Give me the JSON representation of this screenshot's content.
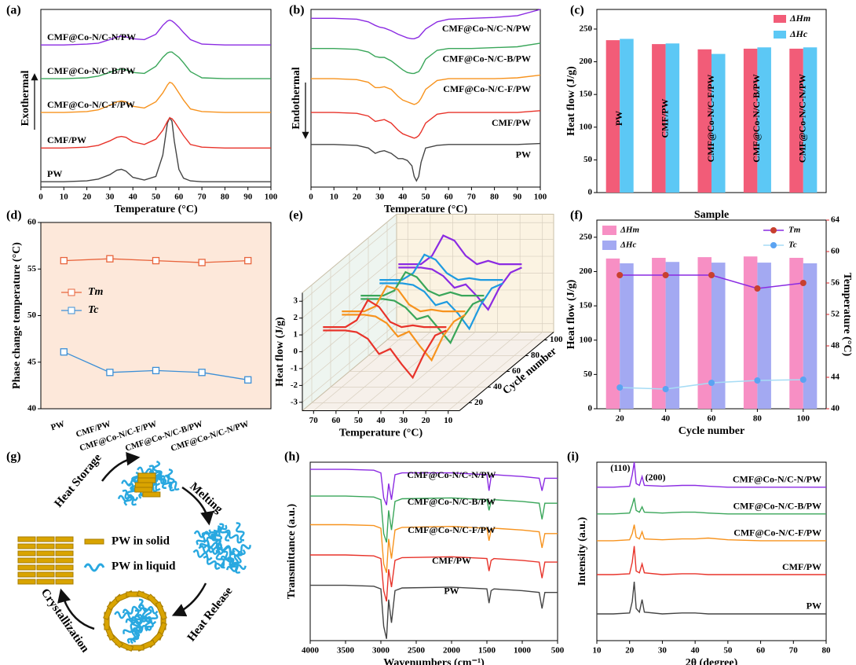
{
  "chart_data": [
    {
      "label": "(a)",
      "type": "line",
      "xlabel": "Temperature (°C)",
      "ylabel": "Exothermal",
      "xlim": [
        0,
        100
      ],
      "xticks": [
        0,
        10,
        20,
        30,
        40,
        50,
        60,
        70,
        80,
        90,
        100
      ],
      "ylim": [
        0,
        10
      ],
      "x": [
        0,
        10,
        20,
        25,
        30,
        33,
        35,
        37,
        40,
        45,
        50,
        53,
        55,
        56,
        57,
        58,
        60,
        62,
        65,
        70,
        80,
        90,
        100
      ],
      "series": [
        {
          "name": "PW",
          "color": "#444444",
          "values": [
            0.3,
            0.3,
            0.35,
            0.45,
            0.7,
            0.95,
            1.0,
            0.9,
            0.55,
            0.4,
            0.6,
            1.8,
            3.6,
            3.9,
            3.7,
            2.6,
            1.0,
            0.5,
            0.35,
            0.3,
            0.3,
            0.3,
            0.3
          ]
        },
        {
          "name": "CMF/PW",
          "color": "#e8332a",
          "values": [
            2.2,
            2.2,
            2.25,
            2.35,
            2.6,
            2.8,
            2.85,
            2.8,
            2.55,
            2.4,
            2.7,
            3.2,
            3.7,
            3.9,
            3.85,
            3.7,
            3.3,
            2.9,
            2.4,
            2.25,
            2.2,
            2.2,
            2.2
          ]
        },
        {
          "name": "CMF@Co-N/C-F/PW",
          "color": "#f7931e",
          "values": [
            4.2,
            4.2,
            4.25,
            4.35,
            4.6,
            4.8,
            4.85,
            4.8,
            4.55,
            4.45,
            4.8,
            5.3,
            5.75,
            5.9,
            5.85,
            5.7,
            5.3,
            4.9,
            4.4,
            4.25,
            4.2,
            4.2,
            4.2
          ]
        },
        {
          "name": "CMF@Co-N/C-B/PW",
          "color": "#3aa65a",
          "values": [
            6.1,
            6.1,
            6.15,
            6.25,
            6.45,
            6.6,
            6.65,
            6.6,
            6.45,
            6.4,
            6.8,
            7.3,
            7.55,
            7.6,
            7.6,
            7.5,
            7.3,
            7.0,
            6.5,
            6.15,
            6.1,
            6.1,
            6.1
          ]
        },
        {
          "name": "CMF@Co-N/C-N/PW",
          "color": "#8b2be2",
          "values": [
            8.0,
            8.0,
            8.05,
            8.1,
            8.3,
            8.45,
            8.5,
            8.45,
            8.35,
            8.3,
            8.6,
            9.1,
            9.35,
            9.4,
            9.35,
            9.25,
            9.0,
            8.7,
            8.3,
            8.05,
            8.0,
            8.0,
            8.0
          ]
        }
      ]
    },
    {
      "label": "(b)",
      "type": "line",
      "xlabel": "Temperature (°C)",
      "ylabel": "Endothermal",
      "xlim": [
        0,
        100
      ],
      "xticks": [
        0,
        10,
        20,
        30,
        40,
        50,
        60,
        70,
        80,
        90,
        100
      ],
      "ylim": [
        0,
        10
      ],
      "x": [
        0,
        10,
        20,
        25,
        28,
        30,
        32,
        35,
        38,
        40,
        42,
        44,
        45,
        46,
        47,
        48,
        50,
        55,
        60,
        70,
        80,
        90,
        100
      ],
      "series": [
        {
          "name": "PW",
          "color": "#444444",
          "values": [
            2.4,
            2.4,
            2.35,
            2.2,
            1.9,
            2.0,
            2.05,
            1.9,
            1.6,
            1.6,
            1.5,
            1.2,
            0.6,
            0.35,
            0.6,
            1.4,
            2.2,
            2.35,
            2.4,
            2.4,
            2.4,
            2.4,
            2.45
          ]
        },
        {
          "name": "CMF/PW",
          "color": "#e8332a",
          "values": [
            4.2,
            4.2,
            4.15,
            4.0,
            3.7,
            3.75,
            3.8,
            3.6,
            3.2,
            3.0,
            2.9,
            2.8,
            2.75,
            2.8,
            2.9,
            3.1,
            3.6,
            4.1,
            4.2,
            4.2,
            4.2,
            4.2,
            4.3
          ]
        },
        {
          "name": "CMF@Co-N/C-F/PW",
          "color": "#f7931e",
          "values": [
            6.1,
            6.1,
            6.05,
            5.9,
            5.6,
            5.6,
            5.65,
            5.5,
            5.1,
            4.9,
            4.8,
            4.7,
            4.65,
            4.7,
            4.8,
            5.0,
            5.5,
            6.0,
            6.1,
            6.1,
            6.1,
            6.15,
            6.3
          ]
        },
        {
          "name": "CMF@Co-N/C-B/PW",
          "color": "#3aa65a",
          "values": [
            7.8,
            7.8,
            7.75,
            7.6,
            7.35,
            7.3,
            7.3,
            7.1,
            6.8,
            6.6,
            6.45,
            6.4,
            6.4,
            6.45,
            6.5,
            6.7,
            7.2,
            7.7,
            7.8,
            7.8,
            7.85,
            7.9,
            8.1
          ]
        },
        {
          "name": "CMF@Co-N/C-N/PW",
          "color": "#8b2be2",
          "values": [
            9.5,
            9.5,
            9.45,
            9.3,
            9.1,
            9.0,
            8.95,
            8.8,
            8.6,
            8.5,
            8.4,
            8.35,
            8.35,
            8.4,
            8.45,
            8.6,
            8.9,
            9.3,
            9.45,
            9.5,
            9.55,
            9.65,
            10.0
          ]
        }
      ]
    },
    {
      "label": "(c)",
      "type": "bar",
      "xlabel": "Sample",
      "ylabel": "Heat flow (J/g)",
      "categories": [
        "PW",
        "CMF/PW",
        "CMF@Co-N/C-F/PW",
        "CMF@Co-N/C-B/PW",
        "CMF@Co-N/C-N/PW"
      ],
      "ylim": [
        0,
        280
      ],
      "yticks": [
        0,
        50,
        100,
        150,
        200,
        250
      ],
      "series": [
        {
          "name": "ΔHm",
          "color": "#f25c78",
          "values": [
            233,
            227,
            219,
            220,
            220
          ]
        },
        {
          "name": "ΔHc",
          "color": "#5cc8f5",
          "values": [
            235,
            228,
            212,
            222,
            222
          ]
        }
      ]
    },
    {
      "label": "(d)",
      "type": "line",
      "ylabel": "Phase change temperature (°C)",
      "categories": [
        "PW",
        "CMF/PW",
        "CMF@Co-N/C-F/PW",
        "CMF@Co-N/C-B/PW",
        "CMF@Co-N/C-N/PW"
      ],
      "ylim": [
        40,
        60
      ],
      "yticks": [
        40,
        45,
        50,
        55,
        60
      ],
      "background": "#fde8da",
      "series": [
        {
          "name": "Tm",
          "color": "#e8643c",
          "values": [
            55.9,
            56.1,
            55.9,
            55.7,
            55.9
          ]
        },
        {
          "name": "Tc",
          "color": "#3c8fd6",
          "values": [
            46.1,
            43.9,
            44.1,
            43.9,
            43.1
          ]
        }
      ]
    },
    {
      "label": "(e)",
      "type": "waterfall3d",
      "xlabel": "Temperature (°C)",
      "ylabel": "Heat flow (J/g)",
      "zlabel": "Cycle number",
      "x": [
        15,
        20,
        25,
        30,
        35,
        40,
        45,
        50,
        55,
        60,
        65,
        70
      ],
      "xlim": [
        75,
        5
      ],
      "xticks": [
        70,
        60,
        50,
        40,
        30,
        20,
        10
      ],
      "ylim": [
        -3.5,
        3.5
      ],
      "yticks": [
        -3,
        -2,
        -1,
        0,
        1,
        2,
        3
      ],
      "zlim": [
        10,
        110
      ],
      "zticks": [
        20,
        40,
        60,
        80,
        100
      ],
      "series": [
        {
          "z": 20,
          "color": "#e8332a",
          "heating": [
            0.8,
            0.5,
            -0.6,
            -2.0,
            -1.2,
            -0.3,
            -0.6,
            0.3,
            0.7,
            0.8,
            0.8,
            0.8
          ],
          "cooling": [
            1.0,
            1.0,
            1.0,
            1.1,
            1.0,
            1.3,
            2.2,
            2.6,
            1.4,
            1.0,
            1.0,
            1.0
          ]
        },
        {
          "z": 40,
          "color": "#f7931e",
          "heating": [
            0.8,
            0.4,
            -0.5,
            -1.9,
            -1.1,
            -0.2,
            -0.5,
            0.3,
            0.7,
            0.8,
            0.8,
            0.8
          ],
          "cooling": [
            1.0,
            1.0,
            1.0,
            1.1,
            1.0,
            1.4,
            2.3,
            2.5,
            1.3,
            1.0,
            1.0,
            1.0
          ]
        },
        {
          "z": 60,
          "color": "#3aa65a",
          "heating": [
            0.8,
            0.5,
            -0.4,
            -1.8,
            -1.0,
            -0.2,
            -0.4,
            0.3,
            0.7,
            0.8,
            0.8,
            0.8
          ],
          "cooling": [
            1.0,
            1.0,
            1.0,
            1.2,
            1.0,
            1.3,
            2.1,
            2.4,
            1.3,
            1.0,
            1.0,
            1.0
          ]
        },
        {
          "z": 80,
          "color": "#1e9be0",
          "heating": [
            0.8,
            0.5,
            -0.5,
            -1.9,
            -1.0,
            -0.3,
            -0.5,
            0.3,
            0.7,
            0.8,
            0.8,
            0.8
          ],
          "cooling": [
            1.0,
            1.0,
            1.0,
            1.1,
            1.0,
            1.4,
            2.2,
            2.5,
            1.4,
            1.0,
            1.0,
            1.0
          ]
        },
        {
          "z": 100,
          "color": "#8b2be2",
          "heating": [
            0.8,
            0.5,
            -0.4,
            -1.7,
            -0.9,
            -0.2,
            -0.4,
            0.3,
            0.7,
            0.8,
            0.8,
            0.8
          ],
          "cooling": [
            1.0,
            1.0,
            1.0,
            1.2,
            1.0,
            1.5,
            2.4,
            2.7,
            1.5,
            1.0,
            1.0,
            1.0
          ]
        }
      ]
    },
    {
      "label": "(f)",
      "type": "combo",
      "xlabel": "Cycle number",
      "ylabel": "Heat flow (J/g)",
      "y2label": "Temperature (°C)",
      "categories": [
        20,
        40,
        60,
        80,
        100
      ],
      "ylim": [
        0,
        275
      ],
      "yticks": [
        0,
        50,
        100,
        150,
        200,
        250
      ],
      "y2lim": [
        40,
        64
      ],
      "y2ticks": [
        40,
        44,
        48,
        52,
        56,
        60,
        64
      ],
      "y2color": "#e0282e",
      "series": [
        {
          "name": "ΔHm",
          "kind": "bar",
          "color": "#f78fc4",
          "values": [
            219,
            220,
            221,
            222,
            220
          ]
        },
        {
          "name": "ΔHc",
          "kind": "bar",
          "color": "#a3a9f2",
          "values": [
            212,
            214,
            213,
            213,
            212
          ]
        },
        {
          "name": "Tm",
          "kind": "line",
          "axis": "y2",
          "color": "#8a2be2",
          "marker_color": "#c8402f",
          "values": [
            57,
            57,
            57,
            55.3,
            56
          ]
        },
        {
          "name": "Tc",
          "kind": "line",
          "axis": "y2",
          "color": "#a6dcf5",
          "marker_color": "#5ba3f2",
          "values": [
            42.7,
            42.5,
            43.3,
            43.6,
            43.7
          ]
        }
      ]
    },
    {
      "label": "(h)",
      "type": "line",
      "xlabel": "Wavenumbers (cm⁻¹)",
      "ylabel": "Transmittance (a.u.)",
      "xlim": [
        4000,
        500
      ],
      "xticks": [
        4000,
        3500,
        3000,
        2500,
        2000,
        1500,
        1000,
        500
      ],
      "ylim": [
        0,
        10
      ],
      "x": [
        4000,
        3500,
        3100,
        3000,
        2960,
        2920,
        2890,
        2850,
        2800,
        2700,
        2000,
        1500,
        1470,
        1440,
        1400,
        1000,
        760,
        720,
        680,
        500
      ],
      "series": [
        {
          "name": "PW",
          "color": "#444444",
          "values": [
            3.1,
            3.1,
            3.05,
            2.9,
            0.8,
            0.1,
            2.3,
            1.0,
            2.8,
            2.95,
            3.0,
            2.9,
            2.1,
            2.8,
            2.9,
            2.8,
            2.7,
            1.8,
            2.7,
            2.7
          ]
        },
        {
          "name": "CMF/PW",
          "color": "#e8332a",
          "values": [
            4.8,
            4.8,
            4.75,
            4.6,
            2.8,
            2.2,
            4.0,
            3.0,
            4.5,
            4.65,
            4.7,
            4.6,
            3.9,
            4.5,
            4.6,
            4.5,
            4.4,
            3.5,
            4.4,
            4.4
          ]
        },
        {
          "name": "CMF@Co-N/C-F/PW",
          "color": "#f7931e",
          "values": [
            6.5,
            6.5,
            6.45,
            6.3,
            4.3,
            3.8,
            5.7,
            4.6,
            6.2,
            6.35,
            6.4,
            6.3,
            5.6,
            6.2,
            6.3,
            6.2,
            6.1,
            5.2,
            6.0,
            6.0
          ]
        },
        {
          "name": "CMF@Co-N/C-B/PW",
          "color": "#3aa65a",
          "values": [
            8.1,
            8.1,
            8.05,
            7.9,
            6.0,
            5.5,
            7.3,
            6.2,
            7.8,
            7.95,
            8.0,
            7.9,
            7.3,
            7.8,
            7.9,
            7.8,
            7.7,
            6.8,
            7.7,
            7.7
          ]
        },
        {
          "name": "CMF@Co-N/C-N/PW",
          "color": "#8b2be2",
          "values": [
            9.6,
            9.6,
            9.55,
            9.4,
            8.0,
            7.6,
            8.8,
            7.9,
            9.3,
            9.4,
            9.4,
            9.3,
            8.4,
            9.2,
            9.3,
            9.2,
            9.1,
            8.4,
            9.1,
            9.1
          ]
        }
      ]
    },
    {
      "label": "(i)",
      "type": "line",
      "xlabel": "2θ (degree)",
      "ylabel": "Intensity (a.u.)",
      "xlim": [
        10,
        80
      ],
      "xticks": [
        10,
        20,
        30,
        40,
        50,
        60,
        70,
        80
      ],
      "ylim": [
        0,
        10
      ],
      "annotations": [
        "(110)",
        "(200)"
      ],
      "x": [
        10,
        15,
        20,
        20.8,
        21.4,
        22,
        23,
        23.8,
        24.5,
        30,
        36,
        40,
        44,
        50,
        60,
        70,
        80
      ],
      "series": [
        {
          "name": "PW",
          "color": "#444444",
          "values": [
            1.5,
            1.5,
            1.55,
            2.2,
            3.3,
            1.8,
            1.6,
            2.3,
            1.6,
            1.5,
            1.55,
            1.55,
            1.5,
            1.5,
            1.5,
            1.5,
            1.5
          ]
        },
        {
          "name": "CMF/PW",
          "color": "#e8332a",
          "values": [
            3.7,
            3.7,
            3.75,
            4.4,
            5.3,
            3.9,
            3.8,
            4.3,
            3.8,
            3.7,
            3.75,
            3.75,
            3.7,
            3.7,
            3.7,
            3.7,
            3.7
          ]
        },
        {
          "name": "CMF@Co-N/C-F/PW",
          "color": "#f7931e",
          "values": [
            5.6,
            5.6,
            5.65,
            6.0,
            6.5,
            5.8,
            5.7,
            6.1,
            5.7,
            5.65,
            5.7,
            5.7,
            5.75,
            5.65,
            5.6,
            5.6,
            5.6
          ]
        },
        {
          "name": "CMF@Co-N/C-B/PW",
          "color": "#3aa65a",
          "values": [
            7.1,
            7.1,
            7.15,
            7.6,
            8.0,
            7.3,
            7.2,
            7.5,
            7.2,
            7.15,
            7.2,
            7.2,
            7.15,
            7.1,
            7.1,
            7.1,
            7.1
          ]
        },
        {
          "name": "CMF@Co-N/C-N/PW",
          "color": "#8b2be2",
          "values": [
            8.6,
            8.6,
            8.65,
            9.3,
            10.0,
            8.8,
            8.7,
            9.2,
            8.7,
            8.65,
            8.7,
            8.7,
            8.65,
            8.6,
            8.6,
            8.6,
            8.6
          ]
        }
      ]
    }
  ],
  "diagram": {
    "label": "(g)",
    "steps": [
      "Heat Storage",
      "Melting",
      "Heat Release",
      "Crystallization"
    ],
    "legend": [
      "PW in solid",
      "PW in liquid"
    ]
  }
}
